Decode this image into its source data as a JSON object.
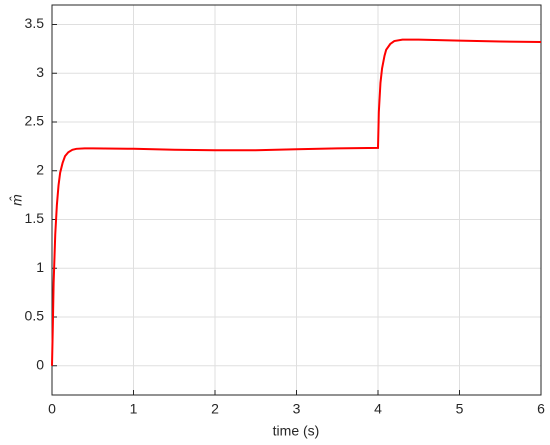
{
  "chart_data": {
    "type": "line",
    "xlabel": "time (s)",
    "ylabel": "m̂",
    "x": [
      0,
      0.01,
      0.02,
      0.04,
      0.06,
      0.08,
      0.1,
      0.13,
      0.16,
      0.2,
      0.25,
      0.3,
      0.4,
      0.5,
      1,
      1.5,
      2,
      2.5,
      3,
      3.5,
      4,
      4.01,
      4.03,
      4.05,
      4.08,
      4.1,
      4.15,
      4.2,
      4.3,
      4.5,
      5,
      5.5,
      6
    ],
    "series": [
      {
        "name": "m̂",
        "color": "#ff0000",
        "values": [
          0,
          0.4,
          0.85,
          1.35,
          1.65,
          1.85,
          1.98,
          2.08,
          2.15,
          2.19,
          2.215,
          2.225,
          2.23,
          2.23,
          2.225,
          2.215,
          2.21,
          2.21,
          2.22,
          2.23,
          2.235,
          2.6,
          2.9,
          3.05,
          3.18,
          3.24,
          3.3,
          3.33,
          3.345,
          3.345,
          3.335,
          3.325,
          3.32
        ]
      }
    ],
    "xlim": [
      0,
      6
    ],
    "xticks": [
      0,
      1,
      2,
      3,
      4,
      5,
      6
    ],
    "ylim": [
      -0.3,
      3.7
    ],
    "yticks": [
      0,
      0.5,
      1,
      1.5,
      2,
      2.5,
      3,
      3.5
    ],
    "grid": true
  }
}
